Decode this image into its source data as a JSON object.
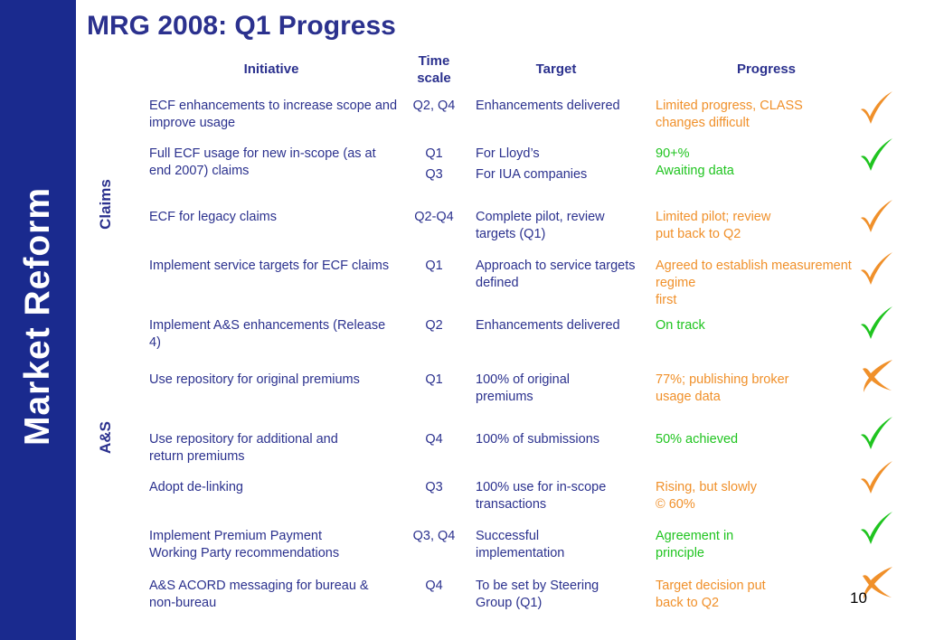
{
  "sidebar": {
    "title": "Market Reform"
  },
  "page": {
    "title": "MRG 2008: Q1 Progress",
    "number": "10"
  },
  "table": {
    "headers": {
      "initiative": "Initiative",
      "timescale": "Time\nscale",
      "target": "Target",
      "progress": "Progress"
    },
    "groups": {
      "claims": "Claims",
      "as": "A&S"
    },
    "rows": [
      {
        "initiative": "ECF enhancements to increase scope and improve usage",
        "timescale": "Q2, Q4",
        "target": "Enhancements delivered",
        "progress": "Limited progress, CLASS\nchanges difficult",
        "progress_color": "orange",
        "status": "check"
      },
      {
        "initiative": "Full ECF usage for new in-scope (as at end 2007) claims",
        "timescale": "Q1",
        "timescale_2": "Q3",
        "target": "For Lloyd’s",
        "target_2": "For IUA companies",
        "progress": "90+%\nAwaiting data",
        "progress_color": "green",
        "status": "check"
      },
      {
        "initiative": "ECF for legacy claims",
        "timescale": "Q2-Q4",
        "target": "Complete pilot, review targets (Q1)",
        "progress": "Limited pilot; review\nput back to Q2",
        "progress_color": "orange",
        "status": "check"
      },
      {
        "initiative": "Implement service targets for ECF claims",
        "timescale": "Q1",
        "target": "Approach to service targets defined",
        "progress": "Agreed to establish measurement\nregime\nfirst",
        "progress_color": "orange",
        "status": "check"
      },
      {
        "initiative": "Implement A&S enhancements (Release 4)",
        "timescale": "Q2",
        "target": "Enhancements delivered",
        "progress": "On  track",
        "progress_color": "green",
        "status": "check"
      },
      {
        "initiative": "Use repository for original premiums",
        "timescale": "Q1",
        "target": "100% of original premiums",
        "progress": "77%; publishing broker\nusage data",
        "progress_color": "orange",
        "status": "cross"
      },
      {
        "initiative": "Use repository for additional and return premiums",
        "timescale": "Q4",
        "target": "100% of submissions",
        "progress": "50% achieved",
        "progress_color": "green",
        "status": "check"
      },
      {
        "initiative": "Adopt de-linking",
        "timescale": "Q3",
        "target": "100% use for in-scope transactions",
        "progress": "Rising, but slowly\n© 60%",
        "progress_color": "orange",
        "status": "check"
      },
      {
        "initiative": "Implement Premium Payment\nWorking Party recommendations",
        "timescale": "Q3, Q4",
        "target": "Successful\nimplementation",
        "progress": "Agreement in\nprinciple",
        "progress_color": "green",
        "status": "check"
      },
      {
        "initiative": "A&S ACORD messaging for bureau & non-bureau",
        "timescale": "Q4",
        "target": "To be set by Steering\nGroup (Q1)",
        "progress": "Target decision put\nback to Q2",
        "progress_color": "orange",
        "status": "cross"
      }
    ]
  },
  "colors": {
    "sidebar": "#1a2a8e",
    "text": "#2b318e",
    "orange": "#f0902a",
    "green": "#1fc41f"
  },
  "icons": {
    "check": "check-icon",
    "cross": "cross-icon"
  }
}
